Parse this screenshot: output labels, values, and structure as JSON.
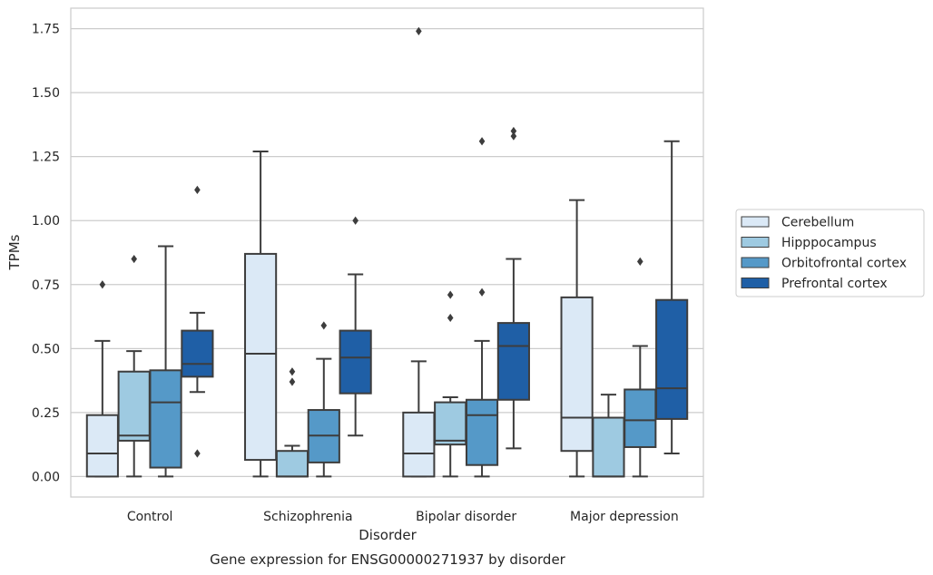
{
  "chart_data": {
    "type": "box",
    "title": "",
    "caption": "Gene expression for ENSG00000271937 by disorder",
    "xlabel": "Disorder",
    "ylabel": "TPMs",
    "ylim": [
      -0.08,
      1.83
    ],
    "yticks": [
      "0.00",
      "0.25",
      "0.50",
      "0.75",
      "1.00",
      "1.25",
      "1.50",
      "1.75"
    ],
    "ytick_values": [
      0,
      0.25,
      0.5,
      0.75,
      1.0,
      1.25,
      1.5,
      1.75
    ],
    "categories": [
      "Control",
      "Schizophrenia",
      "Bipolar disorder",
      "Major depression"
    ],
    "grid": "horizontal",
    "legend_position": "right",
    "series": [
      {
        "name": "Cerebellum",
        "color": "#dbe9f6",
        "boxes": [
          {
            "q1": 0.0,
            "median": 0.09,
            "q3": 0.24,
            "whisker_low": 0.0,
            "whisker_high": 0.53,
            "outliers": [
              0.75
            ]
          },
          {
            "q1": 0.065,
            "median": 0.48,
            "q3": 0.87,
            "whisker_low": 0.0,
            "whisker_high": 1.27,
            "outliers": []
          },
          {
            "q1": 0.0,
            "median": 0.09,
            "q3": 0.25,
            "whisker_low": 0.0,
            "whisker_high": 0.45,
            "outliers": [
              1.74
            ]
          },
          {
            "q1": 0.1,
            "median": 0.23,
            "q3": 0.7,
            "whisker_low": 0.0,
            "whisker_high": 1.08,
            "outliers": []
          }
        ]
      },
      {
        "name": "Hipppocampus",
        "color": "#9ecae1",
        "boxes": [
          {
            "q1": 0.14,
            "median": 0.16,
            "q3": 0.41,
            "whisker_low": 0.0,
            "whisker_high": 0.49,
            "outliers": [
              0.85
            ]
          },
          {
            "q1": 0.0,
            "median": 0.0,
            "q3": 0.1,
            "whisker_low": 0.0,
            "whisker_high": 0.12,
            "outliers": [
              0.41,
              0.37
            ]
          },
          {
            "q1": 0.125,
            "median": 0.14,
            "q3": 0.29,
            "whisker_low": 0.0,
            "whisker_high": 0.31,
            "outliers": [
              0.71,
              0.62
            ]
          },
          {
            "q1": 0.0,
            "median": 0.0,
            "q3": 0.23,
            "whisker_low": 0.0,
            "whisker_high": 0.32,
            "outliers": []
          }
        ]
      },
      {
        "name": "Orbitofrontal cortex",
        "color": "#5599c8",
        "boxes": [
          {
            "q1": 0.035,
            "median": 0.29,
            "q3": 0.415,
            "whisker_low": 0.0,
            "whisker_high": 0.9,
            "outliers": []
          },
          {
            "q1": 0.055,
            "median": 0.16,
            "q3": 0.26,
            "whisker_low": 0.0,
            "whisker_high": 0.46,
            "outliers": [
              0.59
            ]
          },
          {
            "q1": 0.045,
            "median": 0.24,
            "q3": 0.3,
            "whisker_low": 0.0,
            "whisker_high": 0.53,
            "outliers": [
              0.72,
              1.31
            ]
          },
          {
            "q1": 0.115,
            "median": 0.22,
            "q3": 0.34,
            "whisker_low": 0.0,
            "whisker_high": 0.51,
            "outliers": [
              0.84
            ]
          }
        ]
      },
      {
        "name": "Prefrontal cortex",
        "color": "#1f5fa6",
        "boxes": [
          {
            "q1": 0.39,
            "median": 0.44,
            "q3": 0.57,
            "whisker_low": 0.33,
            "whisker_high": 0.64,
            "outliers": [
              1.12,
              0.09
            ]
          },
          {
            "q1": 0.325,
            "median": 0.465,
            "q3": 0.57,
            "whisker_low": 0.16,
            "whisker_high": 0.79,
            "outliers": [
              1.0
            ]
          },
          {
            "q1": 0.3,
            "median": 0.51,
            "q3": 0.6,
            "whisker_low": 0.11,
            "whisker_high": 0.85,
            "outliers": [
              1.35,
              1.33
            ]
          },
          {
            "q1": 0.225,
            "median": 0.345,
            "q3": 0.69,
            "whisker_low": 0.09,
            "whisker_high": 1.31,
            "outliers": []
          }
        ]
      }
    ]
  }
}
